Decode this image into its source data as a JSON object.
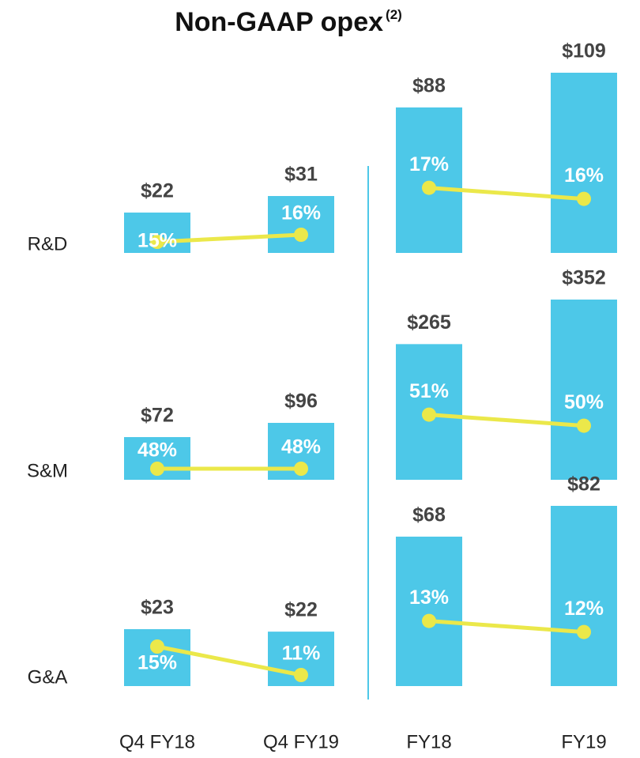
{
  "chart_data": {
    "type": "bar",
    "title": "Non-GAAP opex",
    "title_note": "(2)",
    "categories": [
      "Q4 FY18",
      "Q4 FY19",
      "FY18",
      "FY19"
    ],
    "bar_color": "#4dc8e8",
    "line_color": "#ebe84a",
    "series": [
      {
        "name": "R&D",
        "values": [
          22,
          31,
          88,
          109
        ],
        "value_labels": [
          "$22",
          "$31",
          "$88",
          "$109"
        ],
        "percent": [
          15,
          16,
          17,
          16
        ],
        "percent_labels": [
          "15%",
          "16%",
          "17%",
          "16%"
        ]
      },
      {
        "name": "S&M",
        "values": [
          72,
          96,
          265,
          352
        ],
        "value_labels": [
          "$72",
          "$96",
          "$265",
          "$352"
        ],
        "percent": [
          48,
          48,
          51,
          50
        ],
        "percent_labels": [
          "48%",
          "48%",
          "51%",
          "50%"
        ]
      },
      {
        "name": "G&A",
        "values": [
          23,
          22,
          68,
          82
        ],
        "value_labels": [
          "$23",
          "$22",
          "$68",
          "$82"
        ],
        "percent": [
          15,
          11,
          13,
          12
        ],
        "percent_labels": [
          "15%",
          "11%",
          "13%",
          "12%"
        ]
      }
    ]
  }
}
